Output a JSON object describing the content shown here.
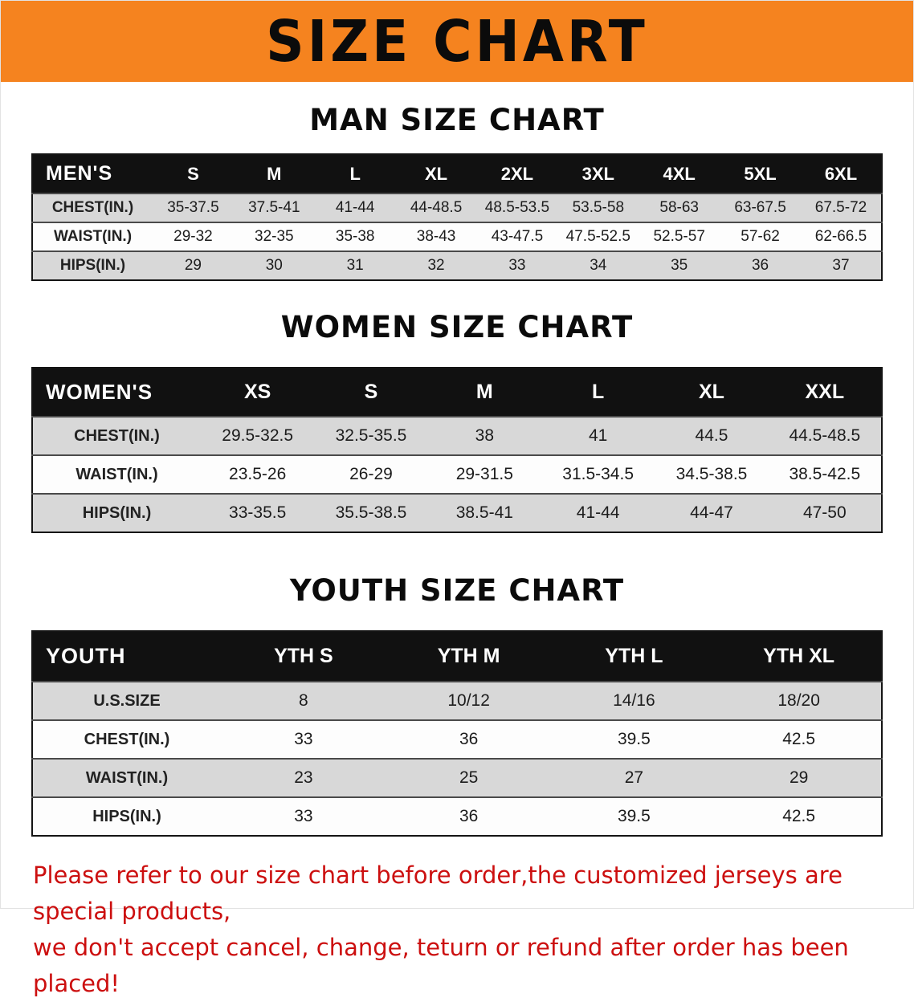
{
  "banner": {
    "title": "SIZE CHART"
  },
  "men": {
    "heading": "MAN SIZE CHART",
    "table": {
      "header": [
        "MEN'S",
        "S",
        "M",
        "L",
        "XL",
        "2XL",
        "3XL",
        "4XL",
        "5XL",
        "6XL"
      ],
      "rows": [
        [
          "CHEST(IN.)",
          "35-37.5",
          "37.5-41",
          "41-44",
          "44-48.5",
          "48.5-53.5",
          "53.5-58",
          "58-63",
          "63-67.5",
          "67.5-72"
        ],
        [
          "WAIST(IN.)",
          "29-32",
          "32-35",
          "35-38",
          "38-43",
          "43-47.5",
          "47.5-52.5",
          "52.5-57",
          "57-62",
          "62-66.5"
        ],
        [
          "HIPS(IN.)",
          "29",
          "30",
          "31",
          "32",
          "33",
          "34",
          "35",
          "36",
          "37"
        ]
      ]
    }
  },
  "women": {
    "heading": "WOMEN SIZE CHART",
    "table": {
      "header": [
        "WOMEN'S",
        "XS",
        "S",
        "M",
        "L",
        "XL",
        "XXL"
      ],
      "rows": [
        [
          "CHEST(IN.)",
          "29.5-32.5",
          "32.5-35.5",
          "38",
          "41",
          "44.5",
          "44.5-48.5"
        ],
        [
          "WAIST(IN.)",
          "23.5-26",
          "26-29",
          "29-31.5",
          "31.5-34.5",
          "34.5-38.5",
          "38.5-42.5"
        ],
        [
          "HIPS(IN.)",
          "33-35.5",
          "35.5-38.5",
          "38.5-41",
          "41-44",
          "44-47",
          "47-50"
        ]
      ]
    }
  },
  "youth": {
    "heading": "YOUTH SIZE CHART",
    "table": {
      "header": [
        "YOUTH",
        "YTH S",
        "YTH M",
        "YTH L",
        "YTH XL"
      ],
      "rows": [
        [
          "U.S.SIZE",
          "8",
          "10/12",
          "14/16",
          "18/20"
        ],
        [
          "CHEST(IN.)",
          "33",
          "36",
          "39.5",
          "42.5"
        ],
        [
          "WAIST(IN.)",
          "23",
          "25",
          "27",
          "29"
        ],
        [
          "HIPS(IN.)",
          "33",
          "36",
          "39.5",
          "42.5"
        ]
      ]
    }
  },
  "disclaimer": {
    "line1": "Please refer to our size chart before order,the customized jerseys are special products,",
    "line2": "we don't accept cancel, change, teturn or refund after order has been placed!"
  },
  "colors": {
    "banner_bg": "#f5831f",
    "table_header_bg": "#111111",
    "row_alt": "#d8d8d8",
    "disclaimer_text": "#cc0f0f"
  }
}
